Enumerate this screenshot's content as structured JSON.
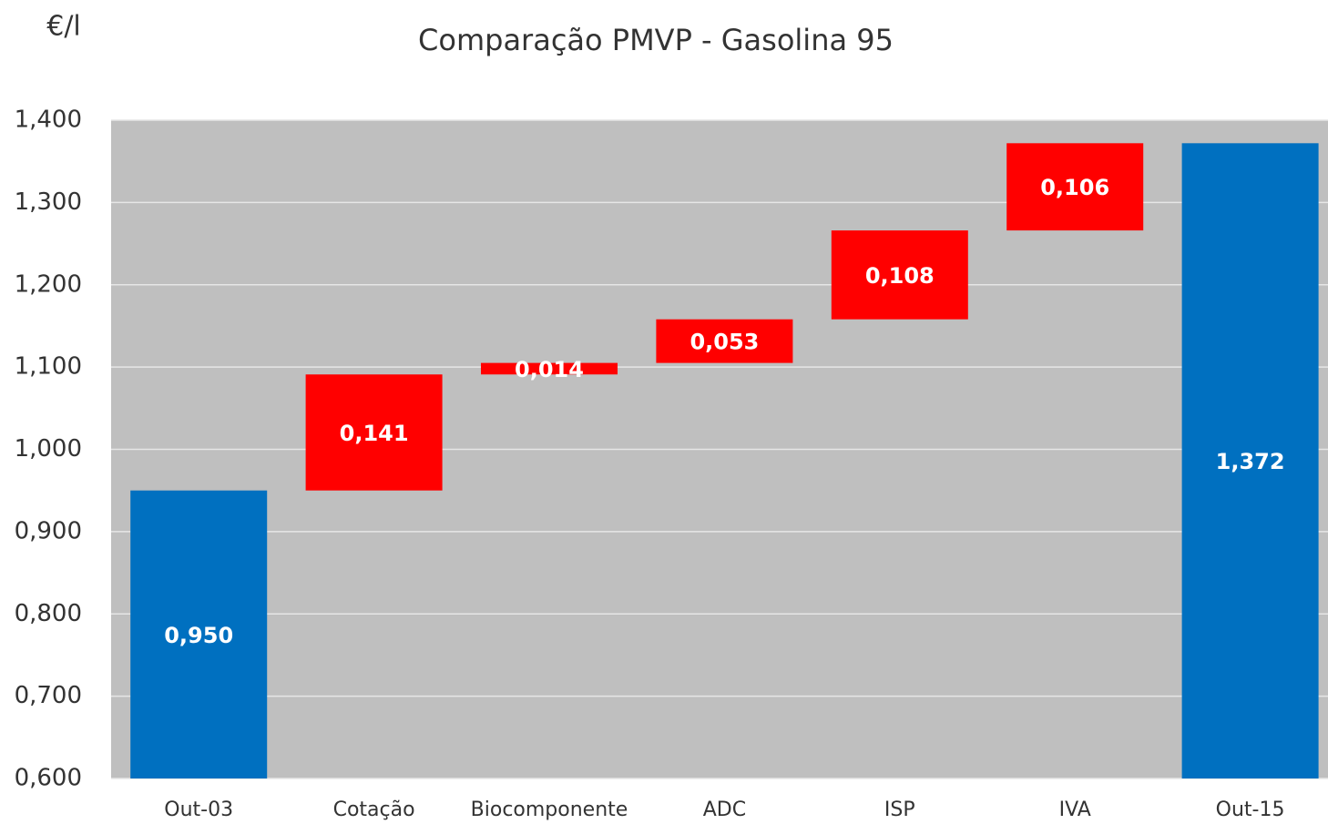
{
  "chart_data": {
    "type": "waterfall",
    "title": "Comparação PMVP - Gasolina 95",
    "y_label": "€/l",
    "categories": [
      "Out-03",
      "Cotação",
      "Biocomponente",
      "ADC",
      "ISP",
      "IVA",
      "Out-15"
    ],
    "values": [
      0.95,
      0.141,
      0.014,
      0.053,
      0.108,
      0.106,
      1.372
    ],
    "value_labels": [
      "0,950",
      "0,141",
      "0,014",
      "0,053",
      "0,108",
      "0,106",
      "1,372"
    ],
    "measure": [
      "absolute",
      "relative",
      "relative",
      "relative",
      "relative",
      "relative",
      "absolute"
    ],
    "colors": [
      "#0070c0",
      "#ff0000",
      "#ff0000",
      "#ff0000",
      "#ff0000",
      "#ff0000",
      "#0070c0"
    ],
    "ylim": [
      0.6,
      1.4
    ],
    "yticks": [
      {
        "value": 0.6,
        "label": "0,600"
      },
      {
        "value": 0.7,
        "label": "0,700"
      },
      {
        "value": 0.8,
        "label": "0,800"
      },
      {
        "value": 0.9,
        "label": "0,900"
      },
      {
        "value": 1.0,
        "label": "1,000"
      },
      {
        "value": 1.1,
        "label": "1,100"
      },
      {
        "value": 1.2,
        "label": "1,200"
      },
      {
        "value": 1.3,
        "label": "1,300"
      },
      {
        "value": 1.4,
        "label": "1,400"
      }
    ],
    "grid": true
  }
}
